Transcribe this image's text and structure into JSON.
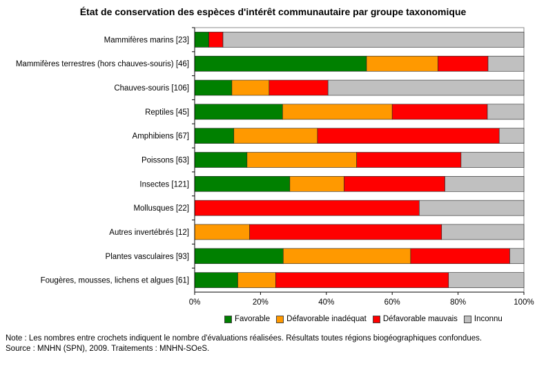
{
  "chart_data": {
    "type": "bar",
    "orientation": "horizontal",
    "stacked": "percent",
    "title": "État de conservation des espèces d'intérêt communautaire par groupe taxonomique",
    "categories": [
      "Mammifères marins [23]",
      "Mammifères terrestres (hors chauves-souris) [46]",
      "Chauves-souris [106]",
      "Reptiles [45]",
      "Amphibiens [67]",
      "Poissons [63]",
      "Insectes [121]",
      "Mollusques [22]",
      "Autres invertébrés [12]",
      "Plantes vasculaires [93]",
      "Fougères, mousses, lichens et algues [61]"
    ],
    "series": [
      {
        "name": "Favorable",
        "color": "#008000",
        "values": [
          4.3,
          52.2,
          11.3,
          26.7,
          11.9,
          15.9,
          28.9,
          0,
          0,
          26.9,
          13.1
        ]
      },
      {
        "name": "Défavorable inadéquat",
        "color": "#ff9900",
        "values": [
          0,
          21.7,
          11.3,
          33.3,
          25.4,
          33.3,
          16.5,
          0,
          16.7,
          38.7,
          11.5
        ]
      },
      {
        "name": "Défavorable mauvais",
        "color": "#ff0000",
        "values": [
          4.3,
          15.2,
          17.9,
          28.9,
          55.2,
          31.7,
          30.6,
          68.2,
          58.3,
          30.1,
          52.5
        ]
      },
      {
        "name": "Inconnu",
        "color": "#c0c0c0",
        "values": [
          91.4,
          10.9,
          59.5,
          11.1,
          7.5,
          19.1,
          24.0,
          31.8,
          25.0,
          4.3,
          22.9
        ]
      }
    ],
    "xlim": [
      0,
      100
    ],
    "xticks": [
      "0%",
      "20%",
      "40%",
      "60%",
      "80%",
      "100%"
    ],
    "legend_position": "bottom"
  },
  "notes": [
    "Note : Les nombres entre crochets indiquent le nombre d'évaluations réalisées. Résultats toutes régions biogéographiques confondues.",
    "Source : MNHN (SPN), 2009. Traitements : MNHN-SOeS."
  ]
}
